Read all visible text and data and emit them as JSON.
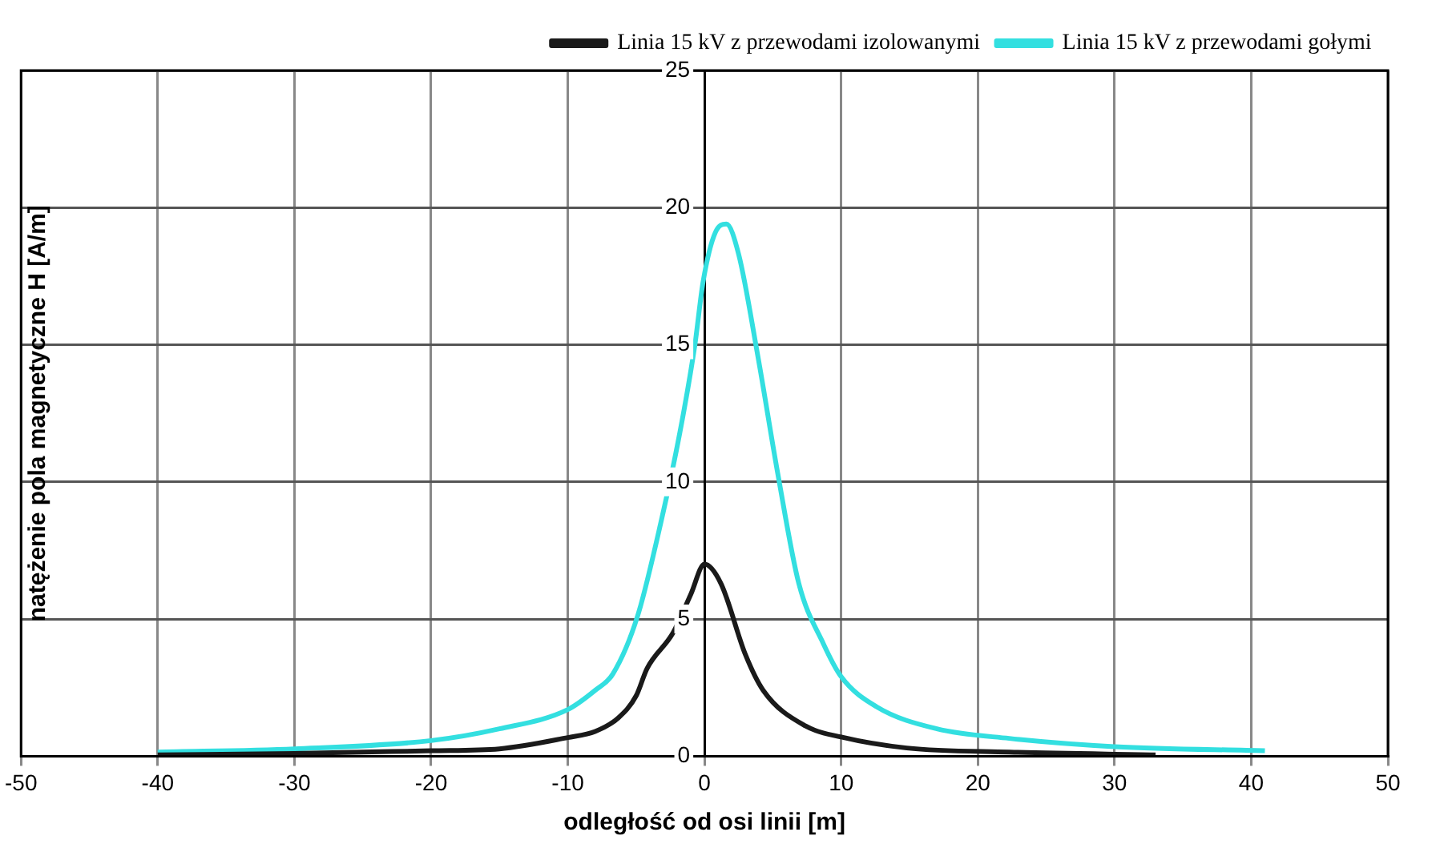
{
  "chart_data": {
    "type": "line",
    "xlabel": "odległość od osi linii [m]",
    "ylabel": "natężenie pola magnetyczne H [A/m]",
    "xlim": [
      -50,
      50
    ],
    "xticks": [
      -50,
      -40,
      -30,
      -20,
      -10,
      0,
      10,
      20,
      30,
      40,
      50
    ],
    "ylim": [
      0,
      25
    ],
    "yticks": [
      0,
      5,
      10,
      15,
      20,
      25
    ],
    "grid": true,
    "legend": "top right",
    "marker": "none",
    "line_style": "solid",
    "series": [
      {
        "name": "Linia 15 kV z przewodami izolowanymi",
        "color": "#1a1a1a",
        "x": [
          -40,
          -30,
          -20,
          -15,
          -10,
          -8,
          -6.3,
          -5,
          -4.2,
          -2.3,
          -1,
          0,
          1.2,
          3,
          4.3,
          7.4,
          10,
          14.8,
          22.3,
          33
        ],
        "values": [
          0.05,
          0.1,
          0.2,
          0.27,
          0.68,
          0.9,
          1.4,
          2.2,
          3.2,
          4.5,
          5.9,
          7,
          6.3,
          3.7,
          2.4,
          1.1,
          0.7,
          0.3,
          0.15,
          0.05
        ]
      },
      {
        "name": "Linia 15 kV z przewodami gołymi",
        "color": "#33dfe0",
        "x": [
          -40,
          -30,
          -20,
          -15,
          -10,
          -8,
          -6.7,
          -4.9,
          -3.2,
          -1.8,
          -0.7,
          -0.1,
          0.8,
          1.6,
          2.5,
          3.9,
          5.4,
          6.9,
          8.7,
          10,
          12.6,
          17,
          22.3,
          30,
          41
        ],
        "values": [
          0.15,
          0.27,
          0.57,
          1,
          1.7,
          2.4,
          3,
          5.1,
          8.5,
          11.8,
          15,
          17.3,
          19.1,
          19.4,
          18.3,
          14.6,
          10.2,
          6.3,
          4.1,
          2.9,
          1.8,
          1,
          0.65,
          0.35,
          0.2
        ]
      }
    ]
  }
}
